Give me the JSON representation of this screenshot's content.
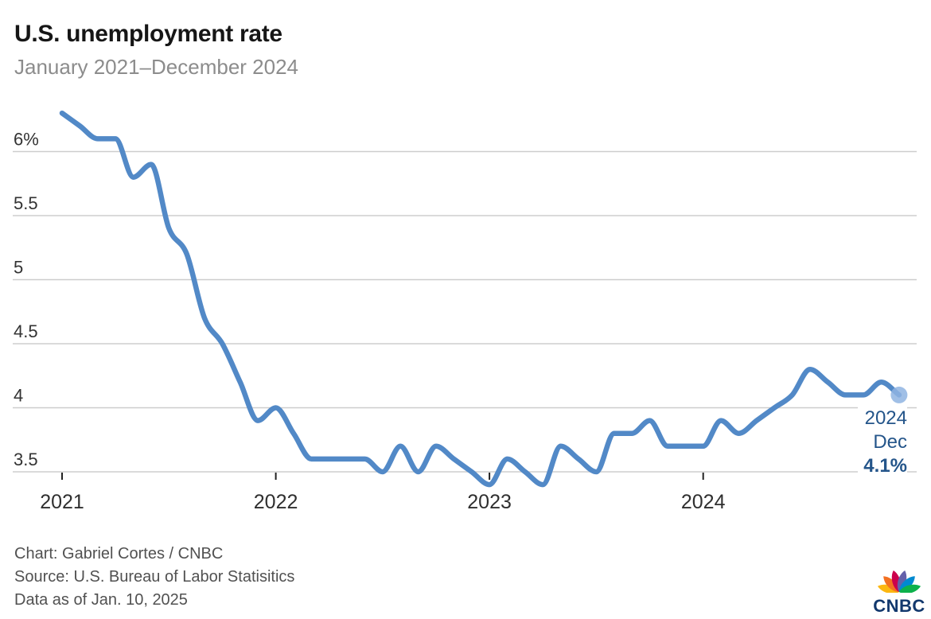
{
  "header": {
    "title": "U.S. unemployment rate",
    "subtitle": "January 2021–December 2024"
  },
  "chart_data": {
    "type": "line",
    "series_name": "U.S. unemployment rate",
    "unit": "percent",
    "x": [
      "2021-01",
      "2021-02",
      "2021-03",
      "2021-04",
      "2021-05",
      "2021-06",
      "2021-07",
      "2021-08",
      "2021-09",
      "2021-10",
      "2021-11",
      "2021-12",
      "2022-01",
      "2022-02",
      "2022-03",
      "2022-04",
      "2022-05",
      "2022-06",
      "2022-07",
      "2022-08",
      "2022-09",
      "2022-10",
      "2022-11",
      "2022-12",
      "2023-01",
      "2023-02",
      "2023-03",
      "2023-04",
      "2023-05",
      "2023-06",
      "2023-07",
      "2023-08",
      "2023-09",
      "2023-10",
      "2023-11",
      "2023-12",
      "2024-01",
      "2024-02",
      "2024-03",
      "2024-04",
      "2024-05",
      "2024-06",
      "2024-07",
      "2024-08",
      "2024-09",
      "2024-10",
      "2024-11",
      "2024-12"
    ],
    "values": [
      6.3,
      6.2,
      6.1,
      6.1,
      5.8,
      5.9,
      5.4,
      5.2,
      4.7,
      4.5,
      4.2,
      3.9,
      4.0,
      3.8,
      3.6,
      3.6,
      3.6,
      3.6,
      3.5,
      3.7,
      3.5,
      3.7,
      3.6,
      3.5,
      3.4,
      3.6,
      3.5,
      3.4,
      3.7,
      3.6,
      3.5,
      3.8,
      3.8,
      3.9,
      3.7,
      3.7,
      3.7,
      3.9,
      3.8,
      3.9,
      4.0,
      4.1,
      4.3,
      4.2,
      4.1,
      4.1,
      4.2,
      4.1
    ],
    "ylim": [
      3.5,
      6.0
    ],
    "y_tick_values": [
      6.0,
      5.5,
      5.0,
      4.5,
      4.0,
      3.5
    ],
    "y_tick_labels": [
      "6%",
      "5.5",
      "5",
      "4.5",
      "4",
      "3.5"
    ],
    "x_tick_labels": [
      "2021",
      "2022",
      "2023",
      "2024"
    ],
    "x_tick_indices": [
      0,
      12,
      24,
      36
    ],
    "grid": "horizontal",
    "legend": "none",
    "endpoint": {
      "year": "2024",
      "month": "Dec",
      "value_label": "4.1%",
      "value": 4.1
    }
  },
  "footer": {
    "credit": "Chart: Gabriel Cortes / CNBC",
    "source": "Source: U.S. Bureau of Labor Statisitics",
    "asof": "Data as of Jan. 10, 2025"
  },
  "logo": {
    "text": "CNBC",
    "text_color": "#12386d",
    "feather_colors": [
      "#FCB711",
      "#F37021",
      "#CC004C",
      "#6460AA",
      "#0089D0",
      "#0DB14B"
    ]
  },
  "colors": {
    "line": "#5289c7",
    "endpoint_dot": "#8fb4e2",
    "annotation_text": "#24558a",
    "gridline": "#cdcdcd",
    "tick_mark": "#222222",
    "axis_label": "#333333",
    "title_text": "#161616",
    "subtitle_text": "#8c8c8c",
    "footer_text": "#515151"
  }
}
